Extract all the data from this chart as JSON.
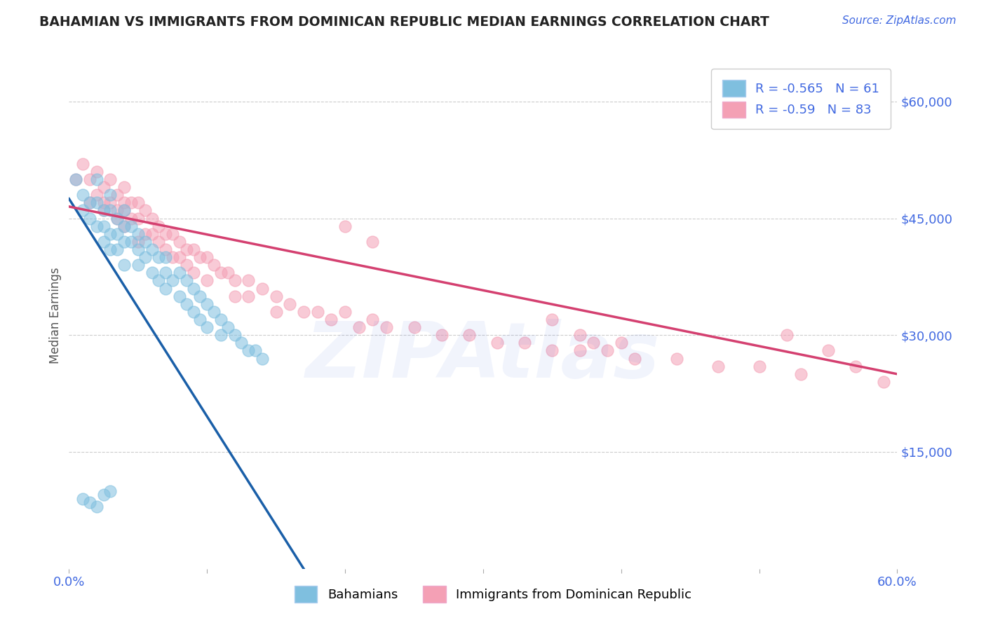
{
  "title": "BAHAMIAN VS IMMIGRANTS FROM DOMINICAN REPUBLIC MEDIAN EARNINGS CORRELATION CHART",
  "source": "Source: ZipAtlas.com",
  "ylabel": "Median Earnings",
  "xlim": [
    0.0,
    0.6
  ],
  "ylim": [
    0,
    65000
  ],
  "yticks": [
    0,
    15000,
    30000,
    45000,
    60000
  ],
  "ytick_labels": [
    "",
    "$15,000",
    "$30,000",
    "$45,000",
    "$60,000"
  ],
  "xticks": [
    0.0,
    0.1,
    0.2,
    0.3,
    0.4,
    0.5,
    0.6
  ],
  "blue_R": -0.565,
  "blue_N": 61,
  "pink_R": -0.59,
  "pink_N": 83,
  "blue_color": "#7fbfdf",
  "pink_color": "#f4a0b5",
  "blue_line_color": "#1a5fa8",
  "pink_line_color": "#d44070",
  "background_color": "#ffffff",
  "grid_color": "#cccccc",
  "title_color": "#222222",
  "axis_label_color": "#555555",
  "tick_label_color": "#4169E1",
  "watermark": "ZIPAtlas",
  "legend_label_blue": "Bahamians",
  "legend_label_pink": "Immigrants from Dominican Republic",
  "blue_scatter_x": [
    0.005,
    0.01,
    0.01,
    0.015,
    0.015,
    0.02,
    0.02,
    0.02,
    0.025,
    0.025,
    0.025,
    0.03,
    0.03,
    0.03,
    0.03,
    0.035,
    0.035,
    0.035,
    0.04,
    0.04,
    0.04,
    0.04,
    0.045,
    0.045,
    0.05,
    0.05,
    0.05,
    0.055,
    0.055,
    0.06,
    0.06,
    0.065,
    0.065,
    0.07,
    0.07,
    0.07,
    0.075,
    0.08,
    0.08,
    0.085,
    0.085,
    0.09,
    0.09,
    0.095,
    0.095,
    0.1,
    0.1,
    0.105,
    0.11,
    0.11,
    0.115,
    0.12,
    0.125,
    0.13,
    0.135,
    0.14,
    0.01,
    0.015,
    0.02,
    0.025,
    0.03
  ],
  "blue_scatter_y": [
    50000,
    48000,
    46000,
    47000,
    45000,
    50000,
    47000,
    44000,
    46000,
    44000,
    42000,
    48000,
    46000,
    43000,
    41000,
    45000,
    43000,
    41000,
    46000,
    44000,
    42000,
    39000,
    44000,
    42000,
    43000,
    41000,
    39000,
    42000,
    40000,
    41000,
    38000,
    40000,
    37000,
    40000,
    38000,
    36000,
    37000,
    38000,
    35000,
    37000,
    34000,
    36000,
    33000,
    35000,
    32000,
    34000,
    31000,
    33000,
    32000,
    30000,
    31000,
    30000,
    29000,
    28000,
    28000,
    27000,
    9000,
    8500,
    8000,
    9500,
    10000
  ],
  "pink_scatter_x": [
    0.005,
    0.01,
    0.015,
    0.02,
    0.02,
    0.025,
    0.025,
    0.03,
    0.03,
    0.035,
    0.035,
    0.04,
    0.04,
    0.04,
    0.045,
    0.045,
    0.05,
    0.05,
    0.05,
    0.055,
    0.055,
    0.06,
    0.06,
    0.065,
    0.065,
    0.07,
    0.07,
    0.075,
    0.075,
    0.08,
    0.08,
    0.085,
    0.085,
    0.09,
    0.09,
    0.095,
    0.1,
    0.1,
    0.105,
    0.11,
    0.115,
    0.12,
    0.12,
    0.13,
    0.13,
    0.14,
    0.15,
    0.15,
    0.16,
    0.17,
    0.18,
    0.19,
    0.2,
    0.21,
    0.22,
    0.23,
    0.25,
    0.27,
    0.29,
    0.31,
    0.33,
    0.35,
    0.37,
    0.39,
    0.41,
    0.44,
    0.47,
    0.5,
    0.53,
    0.04,
    0.2,
    0.22,
    0.35,
    0.37,
    0.52,
    0.38,
    0.4,
    0.55,
    0.57,
    0.59,
    0.015,
    0.025,
    0.035
  ],
  "pink_scatter_y": [
    50000,
    52000,
    50000,
    51000,
    48000,
    49000,
    47000,
    50000,
    47000,
    48000,
    46000,
    49000,
    47000,
    44000,
    47000,
    45000,
    47000,
    45000,
    42000,
    46000,
    43000,
    45000,
    43000,
    44000,
    42000,
    43000,
    41000,
    43000,
    40000,
    42000,
    40000,
    41000,
    39000,
    41000,
    38000,
    40000,
    40000,
    37000,
    39000,
    38000,
    38000,
    37000,
    35000,
    37000,
    35000,
    36000,
    35000,
    33000,
    34000,
    33000,
    33000,
    32000,
    33000,
    31000,
    32000,
    31000,
    31000,
    30000,
    30000,
    29000,
    29000,
    28000,
    28000,
    28000,
    27000,
    27000,
    26000,
    26000,
    25000,
    46000,
    44000,
    42000,
    32000,
    30000,
    30000,
    29000,
    29000,
    28000,
    26000,
    24000,
    47000,
    46000,
    45000
  ],
  "blue_line_x": [
    0.0,
    0.17
  ],
  "blue_line_y": [
    47500,
    0
  ],
  "pink_line_x": [
    0.0,
    0.6
  ],
  "pink_line_y": [
    46500,
    25000
  ],
  "figsize": [
    14.06,
    8.92
  ],
  "dpi": 100
}
